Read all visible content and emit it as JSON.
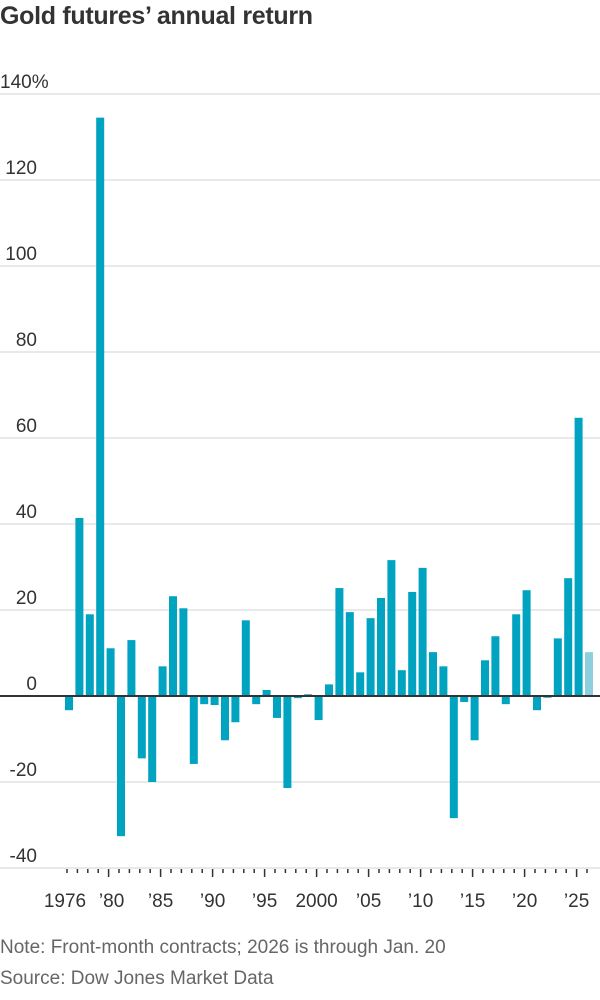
{
  "title": "Gold futures’ annual return",
  "footer": {
    "note": "Note: Front-month contracts; 2026 is through Jan. 20",
    "source": "Source: Dow Jones Market Data"
  },
  "colors": {
    "bar": "#00a3c0",
    "bar_partial": "#8ecfdd",
    "zero_line": "#333333",
    "gridline": "#e2e2e2",
    "text": "#333333",
    "footnote_text": "#666666"
  },
  "chart_data": {
    "type": "bar",
    "title": "Gold futures’ annual return",
    "xlabel": "",
    "ylabel": "",
    "ylim": [
      -40,
      140
    ],
    "yticks": [
      140,
      120,
      100,
      80,
      60,
      40,
      20,
      0,
      -20,
      -40
    ],
    "ytick_labels": [
      "140%",
      "120",
      "100",
      "80",
      "60",
      "40",
      "20",
      "0",
      "-20",
      "-40"
    ],
    "xtick_labels": [
      {
        "year": 1976,
        "label": "1976"
      },
      {
        "year": 1980,
        "label": "’80"
      },
      {
        "year": 1985,
        "label": "’85"
      },
      {
        "year": 1990,
        "label": "’90"
      },
      {
        "year": 1995,
        "label": "’95"
      },
      {
        "year": 2000,
        "label": "2000"
      },
      {
        "year": 2005,
        "label": "’05"
      },
      {
        "year": 2010,
        "label": "’10"
      },
      {
        "year": 2015,
        "label": "’15"
      },
      {
        "year": 2020,
        "label": "’20"
      },
      {
        "year": 2025,
        "label": "’25"
      }
    ],
    "grid": true,
    "legend": null,
    "partial_year": 2026,
    "categories": [
      1976,
      1977,
      1978,
      1979,
      1980,
      1981,
      1982,
      1983,
      1984,
      1985,
      1986,
      1987,
      1988,
      1989,
      1990,
      1991,
      1992,
      1993,
      1994,
      1995,
      1996,
      1997,
      1998,
      1999,
      2000,
      2001,
      2002,
      2003,
      2004,
      2005,
      2006,
      2007,
      2008,
      2009,
      2010,
      2011,
      2012,
      2013,
      2014,
      2015,
      2016,
      2017,
      2018,
      2019,
      2020,
      2021,
      2022,
      2023,
      2024,
      2025,
      2026
    ],
    "values": [
      -3.3,
      41.4,
      19.0,
      134.5,
      11.1,
      -32.6,
      13.0,
      -14.5,
      -20.0,
      6.9,
      23.2,
      20.4,
      -15.8,
      -1.9,
      -2.1,
      -10.3,
      -6.1,
      17.6,
      -1.9,
      1.4,
      -5.1,
      -21.4,
      -0.5,
      0.4,
      -5.6,
      2.7,
      25.1,
      19.5,
      5.5,
      18.1,
      22.8,
      31.6,
      6.0,
      24.2,
      29.8,
      10.2,
      6.9,
      -28.4,
      -1.4,
      -10.3,
      8.3,
      13.9,
      -1.9,
      19.0,
      24.6,
      -3.3,
      -0.4,
      13.4,
      27.4,
      64.7,
      10.2
    ]
  }
}
